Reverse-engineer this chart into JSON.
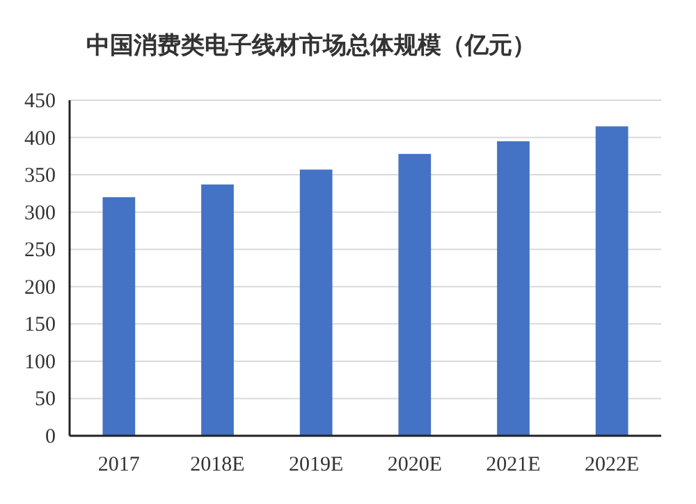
{
  "chart_data": {
    "type": "bar",
    "title": "中国消费类电子线材市场总体规模（亿元）",
    "categories": [
      "2017",
      "2018E",
      "2019E",
      "2020E",
      "2021E",
      "2022E"
    ],
    "values": [
      320,
      337,
      357,
      378,
      395,
      415
    ],
    "color": "#4472c4",
    "ylim": [
      0,
      450
    ],
    "yticks": [
      0,
      50,
      100,
      150,
      200,
      250,
      300,
      350,
      400,
      450
    ],
    "grid": "y"
  }
}
